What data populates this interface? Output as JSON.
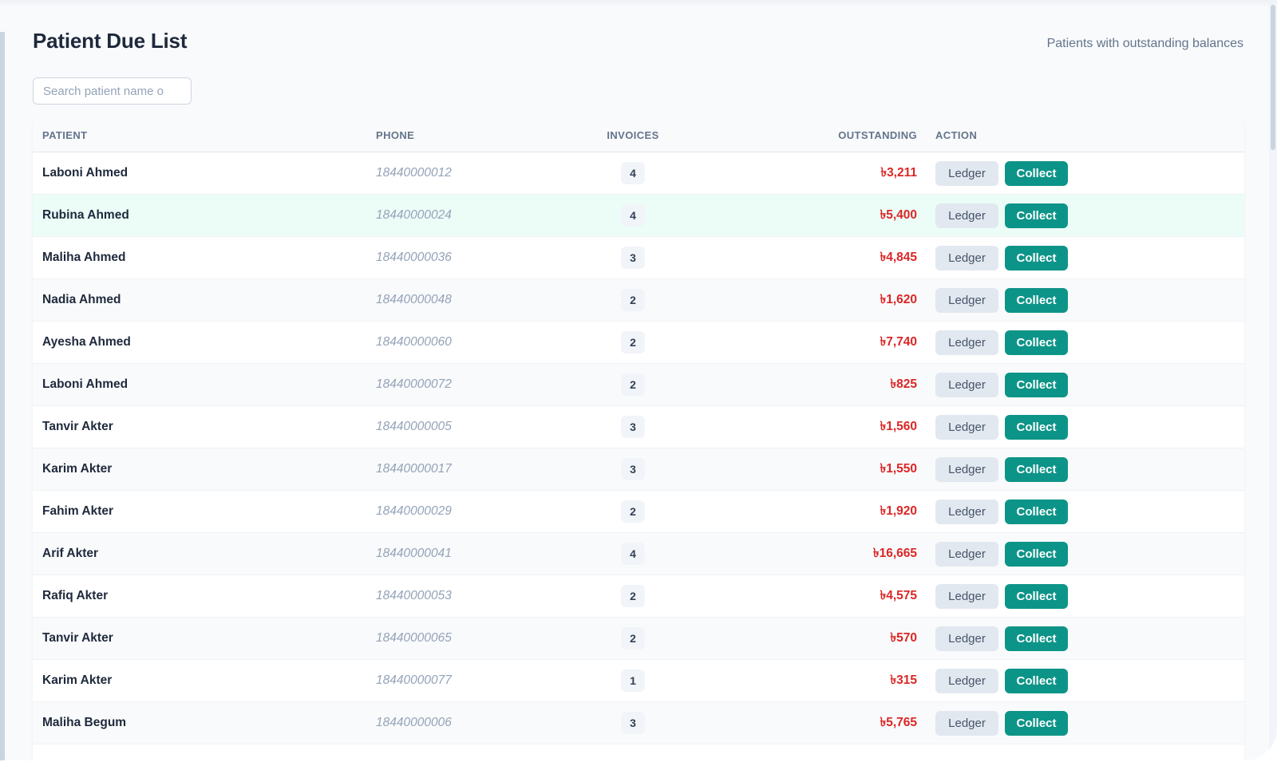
{
  "page": {
    "title": "Patient Due List",
    "subtitle": "Patients with outstanding balances"
  },
  "search": {
    "placeholder": "Search patient name o",
    "value": ""
  },
  "table": {
    "headers": {
      "patient": "PATIENT",
      "phone": "PHONE",
      "invoices": "INVOICES",
      "outstanding": "OUTSTANDING",
      "action": "ACTION"
    },
    "action_labels": {
      "ledger": "Ledger",
      "collect": "Collect"
    },
    "rows": [
      {
        "name": "Laboni Ahmed",
        "phone": "18440000012",
        "invoices": "4",
        "outstanding": "৳3,211"
      },
      {
        "name": "Rubina Ahmed",
        "phone": "18440000024",
        "invoices": "4",
        "outstanding": "৳5,400",
        "highlighted": true
      },
      {
        "name": "Maliha Ahmed",
        "phone": "18440000036",
        "invoices": "3",
        "outstanding": "৳4,845"
      },
      {
        "name": "Nadia Ahmed",
        "phone": "18440000048",
        "invoices": "2",
        "outstanding": "৳1,620"
      },
      {
        "name": "Ayesha Ahmed",
        "phone": "18440000060",
        "invoices": "2",
        "outstanding": "৳7,740"
      },
      {
        "name": "Laboni Ahmed",
        "phone": "18440000072",
        "invoices": "2",
        "outstanding": "৳825"
      },
      {
        "name": "Tanvir Akter",
        "phone": "18440000005",
        "invoices": "3",
        "outstanding": "৳1,560"
      },
      {
        "name": "Karim Akter",
        "phone": "18440000017",
        "invoices": "3",
        "outstanding": "৳1,550"
      },
      {
        "name": "Fahim Akter",
        "phone": "18440000029",
        "invoices": "2",
        "outstanding": "৳1,920"
      },
      {
        "name": "Arif Akter",
        "phone": "18440000041",
        "invoices": "4",
        "outstanding": "৳16,665"
      },
      {
        "name": "Rafiq Akter",
        "phone": "18440000053",
        "invoices": "2",
        "outstanding": "৳4,575"
      },
      {
        "name": "Tanvir Akter",
        "phone": "18440000065",
        "invoices": "2",
        "outstanding": "৳570"
      },
      {
        "name": "Karim Akter",
        "phone": "18440000077",
        "invoices": "1",
        "outstanding": "৳315"
      },
      {
        "name": "Maliha Begum",
        "phone": "18440000006",
        "invoices": "3",
        "outstanding": "৳5,765"
      }
    ]
  },
  "colors": {
    "accent": "#0d9488",
    "outstanding_text": "#dc2626",
    "highlight_row": "#ecfdf8"
  }
}
